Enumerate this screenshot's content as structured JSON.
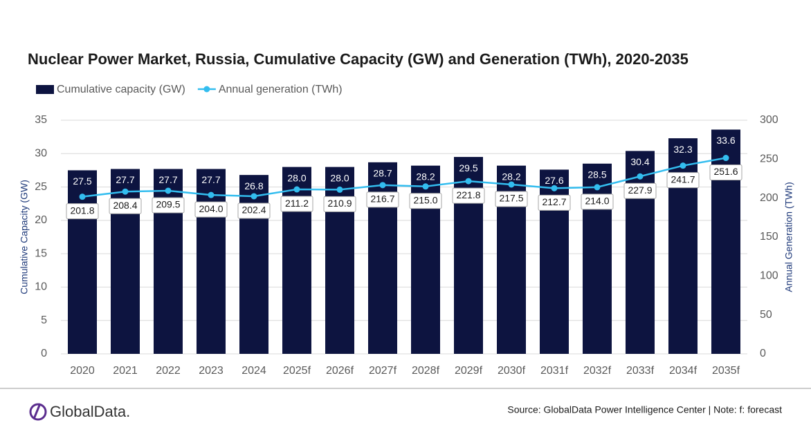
{
  "chart_data": {
    "type": "bar",
    "title": "Nuclear Power Market, Russia, Cumulative Capacity (GW) and Generation (TWh), 2020-2035",
    "categories": [
      "2020",
      "2021",
      "2022",
      "2023",
      "2024",
      "2025f",
      "2026f",
      "2027f",
      "2028f",
      "2029f",
      "2030f",
      "2031f",
      "2032f",
      "2033f",
      "2034f",
      "2035f"
    ],
    "series": [
      {
        "name": "Cumulative capacity (GW)",
        "type": "bar",
        "color": "#0d1440",
        "values": [
          27.5,
          27.7,
          27.7,
          27.7,
          26.8,
          28.0,
          28.0,
          28.7,
          28.2,
          29.5,
          28.2,
          27.6,
          28.5,
          30.4,
          32.3,
          33.6
        ],
        "value_labels": [
          "27.5",
          "27.7",
          "27.7",
          "27.7",
          "26.8",
          "28.0",
          "28.0",
          "28.7",
          "28.2",
          "29.5",
          "28.2",
          "27.6",
          "28.5",
          "30.4",
          "32.3",
          "33.6"
        ]
      },
      {
        "name": "Annual generation (TWh)",
        "type": "line",
        "axis": "y2",
        "color": "#33bdef",
        "values": [
          201.8,
          208.4,
          209.5,
          204.0,
          202.4,
          211.2,
          210.9,
          216.7,
          215.0,
          221.8,
          217.5,
          212.7,
          214.0,
          227.9,
          241.7,
          251.6
        ],
        "value_labels": [
          "201.8",
          "208.4",
          "209.5",
          "204.0",
          "202.4",
          "211.2",
          "210.9",
          "216.7",
          "215.0",
          "221.8",
          "217.5",
          "212.7",
          "214.0",
          "227.9",
          "241.7",
          "251.6"
        ]
      }
    ],
    "ylabel": "Cumulative Capacity (GW)",
    "y2label": "Annual Generation (TWh)",
    "ylim": [
      0,
      35
    ],
    "yticks": [
      0,
      5,
      10,
      15,
      20,
      25,
      30,
      35
    ],
    "y2lim": [
      0,
      300
    ],
    "y2ticks": [
      0,
      50,
      100,
      150,
      200,
      250,
      300
    ],
    "grid": true,
    "legend": "top-left"
  },
  "footer": {
    "logo": "GlobalData.",
    "source": "Source: GlobalData Power Intelligence Center | Note: f: forecast"
  }
}
